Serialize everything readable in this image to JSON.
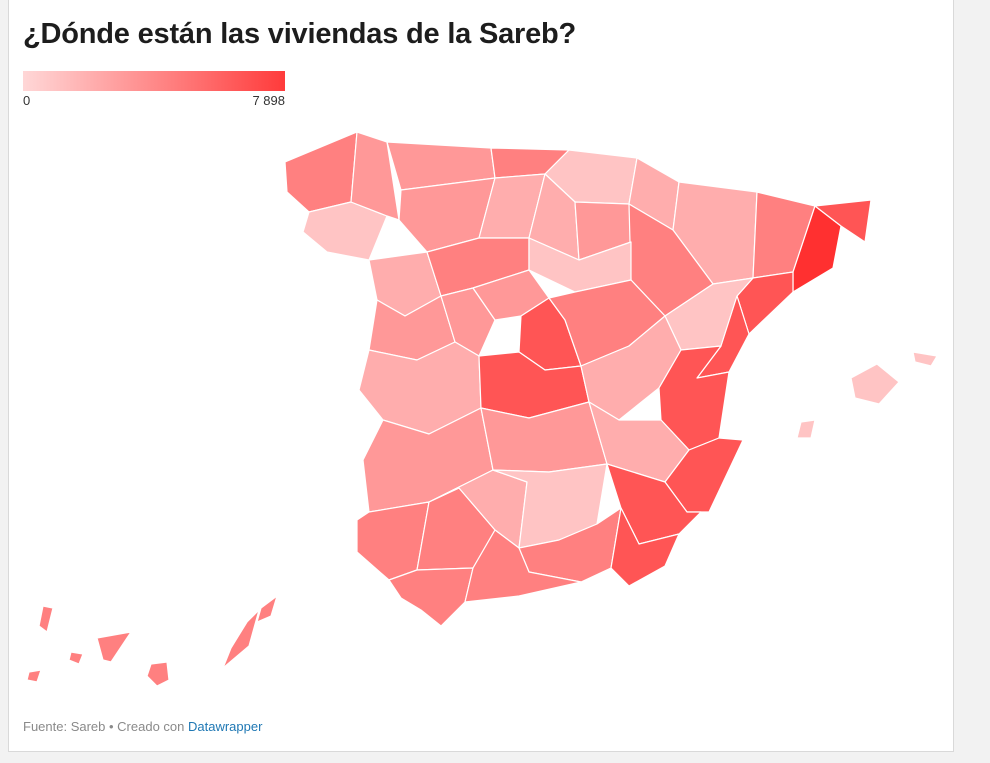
{
  "title": "¿Dónde están las viviendas de la Sareb?",
  "legend": {
    "min_label": "0",
    "max_label": "7 898",
    "color_low": "#ffd7d7",
    "color_high": "#ff3b3b"
  },
  "footer": {
    "source": "Fuente: Sareb",
    "separator": " • ",
    "created_with": "Creado con ",
    "tool": "Datawrapper"
  },
  "colors": {
    "very_light": "#ffc4c4",
    "light": "#ffadad",
    "medium_light": "#ff9898",
    "medium": "#ff8080",
    "medium_dark": "#ff6a6a",
    "dark": "#ff5555",
    "darkest": "#ff3030",
    "border": "#ffffff"
  },
  "regions": [
    {
      "name": "galicia-north",
      "shade": "medium"
    },
    {
      "name": "galicia-south",
      "shade": "very_light"
    },
    {
      "name": "galicia-inland",
      "shade": "medium_light"
    },
    {
      "name": "asturias",
      "shade": "medium_light"
    },
    {
      "name": "cantabria",
      "shade": "medium"
    },
    {
      "name": "basque-country",
      "shade": "very_light"
    },
    {
      "name": "navarra",
      "shade": "light"
    },
    {
      "name": "huesca",
      "shade": "light"
    },
    {
      "name": "lleida",
      "shade": "medium"
    },
    {
      "name": "barcelona",
      "shade": "darkest"
    },
    {
      "name": "girona",
      "shade": "dark"
    },
    {
      "name": "tarragona",
      "shade": "dark"
    },
    {
      "name": "leon",
      "shade": "medium_light"
    },
    {
      "name": "palencia",
      "shade": "light"
    },
    {
      "name": "burgos",
      "shade": "light"
    },
    {
      "name": "la-rioja",
      "shade": "medium_light"
    },
    {
      "name": "zaragoza",
      "shade": "medium"
    },
    {
      "name": "zamora",
      "shade": "light"
    },
    {
      "name": "valladolid",
      "shade": "medium"
    },
    {
      "name": "soria",
      "shade": "very_light"
    },
    {
      "name": "teruel",
      "shade": "very_light"
    },
    {
      "name": "salamanca",
      "shade": "medium_light"
    },
    {
      "name": "avila",
      "shade": "medium_light"
    },
    {
      "name": "segovia",
      "shade": "medium_light"
    },
    {
      "name": "madrid",
      "shade": "dark"
    },
    {
      "name": "guadalajara",
      "shade": "medium"
    },
    {
      "name": "castellon",
      "shade": "dark"
    },
    {
      "name": "caceres",
      "shade": "light"
    },
    {
      "name": "toledo",
      "shade": "dark"
    },
    {
      "name": "cuenca",
      "shade": "light"
    },
    {
      "name": "valencia",
      "shade": "dark"
    },
    {
      "name": "badajoz",
      "shade": "medium_light"
    },
    {
      "name": "ciudad-real",
      "shade": "medium_light"
    },
    {
      "name": "albacete",
      "shade": "light"
    },
    {
      "name": "alicante",
      "shade": "dark"
    },
    {
      "name": "huelva",
      "shade": "medium"
    },
    {
      "name": "sevilla",
      "shade": "medium"
    },
    {
      "name": "cordoba",
      "shade": "light"
    },
    {
      "name": "jaen",
      "shade": "very_light"
    },
    {
      "name": "granada",
      "shade": "medium"
    },
    {
      "name": "murcia",
      "shade": "dark"
    },
    {
      "name": "almeria",
      "shade": "dark"
    },
    {
      "name": "cadiz",
      "shade": "medium"
    },
    {
      "name": "malaga",
      "shade": "medium"
    },
    {
      "name": "mallorca",
      "shade": "very_light"
    },
    {
      "name": "menorca",
      "shade": "very_light"
    },
    {
      "name": "ibiza",
      "shade": "very_light"
    },
    {
      "name": "la-palma",
      "shade": "medium"
    },
    {
      "name": "el-hierro",
      "shade": "medium"
    },
    {
      "name": "la-gomera",
      "shade": "medium"
    },
    {
      "name": "tenerife",
      "shade": "medium"
    },
    {
      "name": "gran-canaria",
      "shade": "medium"
    },
    {
      "name": "fuerteventura",
      "shade": "medium"
    },
    {
      "name": "lanzarote",
      "shade": "medium"
    }
  ]
}
